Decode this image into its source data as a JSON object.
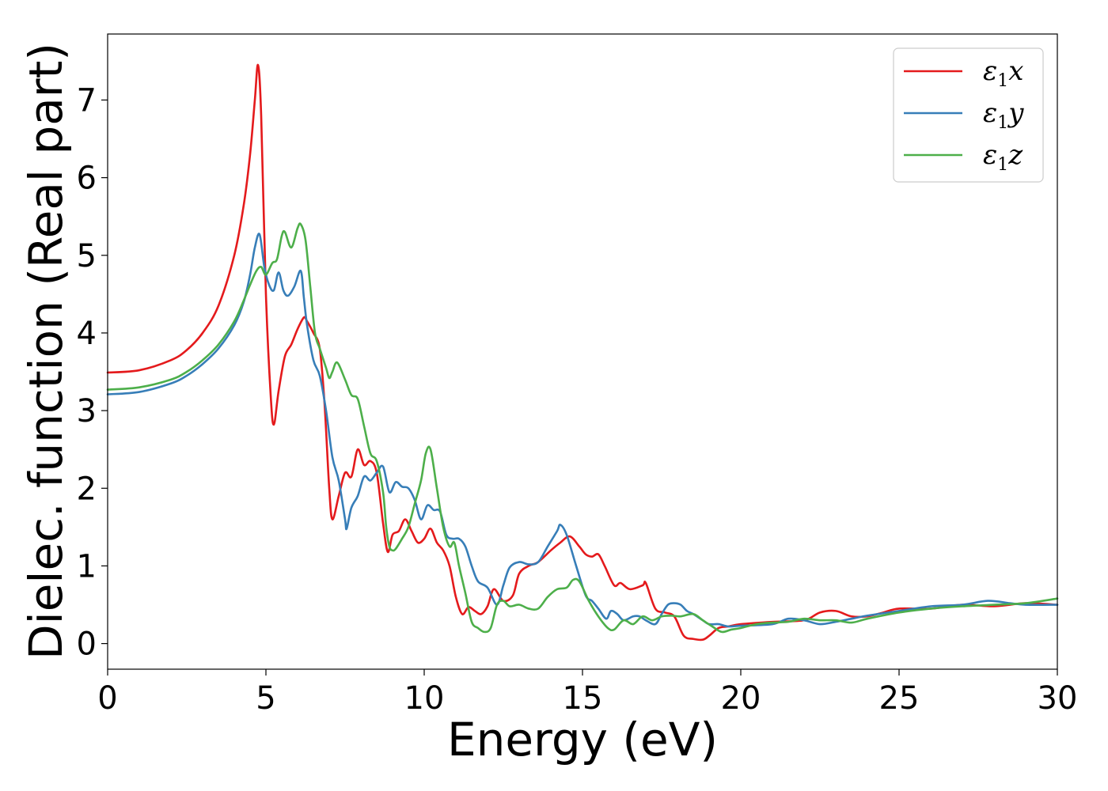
{
  "chart_data": {
    "type": "line",
    "title": "",
    "xlabel": "Energy (eV)",
    "ylabel": "Dielec. function (Real part)",
    "xlim": [
      0,
      30
    ],
    "ylim": [
      -0.33,
      7.85
    ],
    "xticks": [
      0,
      5,
      10,
      15,
      20,
      25,
      30
    ],
    "yticks": [
      0,
      1,
      2,
      3,
      4,
      5,
      6,
      7
    ],
    "grid": false,
    "legend_position": "top-right",
    "series": [
      {
        "name": "ε1x",
        "legend": {
          "base": "ε",
          "sub": "1",
          "suffix": "x"
        },
        "color": "#e41a1c",
        "x": [
          0,
          1,
          2,
          2.5,
          3,
          3.5,
          4,
          4.3,
          4.5,
          4.65,
          4.75,
          4.85,
          5.0,
          5.15,
          5.25,
          5.4,
          5.6,
          5.8,
          6.0,
          6.2,
          6.3,
          6.5,
          6.7,
          6.85,
          7.0,
          7.1,
          7.3,
          7.5,
          7.7,
          7.9,
          8.1,
          8.3,
          8.5,
          8.7,
          8.85,
          9.0,
          9.2,
          9.4,
          9.6,
          9.8,
          10.0,
          10.2,
          10.4,
          10.6,
          10.8,
          11.0,
          11.2,
          11.4,
          11.6,
          11.8,
          12.0,
          12.2,
          12.5,
          12.8,
          13.0,
          13.3,
          13.6,
          14.0,
          14.3,
          14.6,
          14.9,
          15.1,
          15.3,
          15.5,
          15.7,
          16.0,
          16.2,
          16.5,
          16.9,
          17.0,
          17.3,
          17.6,
          17.9,
          18.2,
          18.5,
          18.8,
          19.0,
          19.3,
          19.6,
          20.0,
          21.0,
          22.0,
          22.5,
          23.0,
          23.5,
          24.0,
          24.5,
          25.0,
          26.0,
          27.0,
          28.0,
          29.0,
          30.0
        ],
        "values": [
          3.49,
          3.52,
          3.65,
          3.78,
          4.0,
          4.35,
          5.0,
          5.65,
          6.3,
          7.0,
          7.45,
          6.8,
          4.5,
          3.2,
          2.82,
          3.25,
          3.7,
          3.85,
          4.05,
          4.2,
          4.15,
          4.0,
          3.8,
          3.1,
          2.0,
          1.6,
          1.9,
          2.2,
          2.15,
          2.5,
          2.3,
          2.35,
          2.2,
          1.55,
          1.18,
          1.4,
          1.45,
          1.6,
          1.45,
          1.3,
          1.35,
          1.48,
          1.3,
          1.2,
          1.0,
          0.6,
          0.38,
          0.47,
          0.42,
          0.38,
          0.48,
          0.7,
          0.55,
          0.62,
          0.9,
          1.0,
          1.05,
          1.2,
          1.3,
          1.38,
          1.25,
          1.15,
          1.12,
          1.15,
          1.0,
          0.75,
          0.78,
          0.7,
          0.75,
          0.78,
          0.45,
          0.4,
          0.35,
          0.1,
          0.06,
          0.05,
          0.1,
          0.2,
          0.22,
          0.25,
          0.28,
          0.3,
          0.4,
          0.42,
          0.35,
          0.35,
          0.4,
          0.45,
          0.45,
          0.5,
          0.48,
          0.52,
          0.5
        ]
      },
      {
        "name": "ε1y",
        "legend": {
          "base": "ε",
          "sub": "1",
          "suffix": "y"
        },
        "color": "#377eb8",
        "x": [
          0,
          1,
          2,
          2.5,
          3,
          3.5,
          4,
          4.3,
          4.5,
          4.65,
          4.8,
          4.95,
          5.1,
          5.25,
          5.4,
          5.55,
          5.7,
          5.9,
          6.1,
          6.2,
          6.3,
          6.5,
          6.7,
          6.9,
          7.1,
          7.3,
          7.5,
          7.55,
          7.7,
          7.9,
          8.1,
          8.3,
          8.5,
          8.7,
          8.9,
          9.1,
          9.3,
          9.5,
          9.7,
          9.9,
          10.1,
          10.3,
          10.5,
          10.7,
          10.9,
          11.1,
          11.3,
          11.5,
          11.7,
          12.0,
          12.3,
          12.5,
          12.7,
          13.0,
          13.3,
          13.6,
          13.9,
          14.2,
          14.3,
          14.5,
          14.8,
          15.1,
          15.3,
          15.5,
          15.75,
          15.9,
          16.1,
          16.3,
          16.6,
          16.8,
          17.0,
          17.3,
          17.5,
          17.7,
          17.9,
          18.1,
          18.3,
          18.5,
          18.8,
          19.0,
          19.3,
          19.6,
          20.0,
          21.0,
          21.5,
          22.0,
          22.5,
          23.0,
          23.5,
          24.0,
          25.0,
          26.0,
          27.0,
          27.8,
          28.5,
          29.0,
          30.0
        ],
        "values": [
          3.21,
          3.24,
          3.35,
          3.45,
          3.6,
          3.8,
          4.1,
          4.4,
          4.75,
          5.1,
          5.27,
          4.85,
          4.62,
          4.55,
          4.78,
          4.55,
          4.48,
          4.6,
          4.8,
          4.45,
          4.1,
          3.65,
          3.45,
          3.0,
          2.4,
          2.1,
          1.6,
          1.48,
          1.75,
          1.9,
          2.15,
          2.1,
          2.2,
          2.28,
          1.95,
          2.08,
          2.02,
          2.0,
          1.85,
          1.6,
          1.78,
          1.72,
          1.7,
          1.4,
          1.35,
          1.35,
          1.25,
          1.0,
          0.8,
          0.72,
          0.5,
          0.75,
          0.98,
          1.05,
          1.02,
          1.05,
          1.25,
          1.45,
          1.53,
          1.4,
          1.0,
          0.62,
          0.55,
          0.45,
          0.32,
          0.42,
          0.38,
          0.3,
          0.35,
          0.35,
          0.3,
          0.25,
          0.38,
          0.5,
          0.52,
          0.5,
          0.42,
          0.38,
          0.3,
          0.25,
          0.25,
          0.22,
          0.23,
          0.25,
          0.32,
          0.3,
          0.25,
          0.28,
          0.32,
          0.36,
          0.42,
          0.48,
          0.5,
          0.55,
          0.52,
          0.5,
          0.5
        ]
      },
      {
        "name": "ε1z",
        "legend": {
          "base": "ε",
          "sub": "1",
          "suffix": "z"
        },
        "color": "#4daf4a",
        "x": [
          0,
          1,
          2,
          2.5,
          3,
          3.5,
          4,
          4.3,
          4.5,
          4.7,
          4.85,
          5.0,
          5.2,
          5.35,
          5.5,
          5.6,
          5.8,
          6.0,
          6.1,
          6.25,
          6.4,
          6.55,
          6.7,
          6.9,
          7.0,
          7.1,
          7.25,
          7.5,
          7.7,
          7.9,
          8.1,
          8.3,
          8.5,
          8.7,
          8.8,
          8.9,
          9.0,
          9.1,
          9.3,
          9.5,
          9.7,
          9.9,
          10.05,
          10.2,
          10.4,
          10.6,
          10.8,
          10.95,
          11.1,
          11.3,
          11.5,
          11.7,
          11.9,
          12.1,
          12.3,
          12.5,
          12.7,
          13.0,
          13.3,
          13.6,
          13.9,
          14.2,
          14.5,
          14.7,
          14.9,
          15.2,
          15.5,
          15.8,
          16.0,
          16.3,
          16.6,
          16.9,
          17.2,
          17.5,
          17.8,
          18.1,
          18.5,
          18.8,
          19.1,
          19.4,
          19.7,
          20.0,
          20.5,
          21.0,
          21.5,
          22.0,
          22.5,
          23.0,
          23.5,
          24.0,
          25.0,
          26.0,
          27.0,
          28.0,
          29.0,
          30.0
        ],
        "values": [
          3.27,
          3.3,
          3.4,
          3.5,
          3.65,
          3.85,
          4.15,
          4.42,
          4.62,
          4.8,
          4.85,
          4.75,
          4.9,
          4.95,
          5.25,
          5.3,
          5.1,
          5.35,
          5.4,
          5.2,
          4.6,
          4.0,
          3.8,
          3.55,
          3.42,
          3.5,
          3.62,
          3.4,
          3.2,
          3.15,
          2.8,
          2.45,
          2.35,
          1.95,
          1.5,
          1.25,
          1.2,
          1.22,
          1.35,
          1.5,
          1.8,
          2.1,
          2.45,
          2.5,
          2.0,
          1.5,
          1.25,
          1.3,
          1.0,
          0.65,
          0.28,
          0.2,
          0.15,
          0.2,
          0.5,
          0.55,
          0.48,
          0.5,
          0.45,
          0.45,
          0.6,
          0.7,
          0.72,
          0.82,
          0.8,
          0.55,
          0.35,
          0.2,
          0.18,
          0.3,
          0.25,
          0.35,
          0.3,
          0.35,
          0.36,
          0.35,
          0.38,
          0.3,
          0.22,
          0.15,
          0.18,
          0.2,
          0.25,
          0.27,
          0.28,
          0.32,
          0.3,
          0.3,
          0.27,
          0.32,
          0.4,
          0.45,
          0.48,
          0.5,
          0.52,
          0.58
        ]
      }
    ]
  }
}
